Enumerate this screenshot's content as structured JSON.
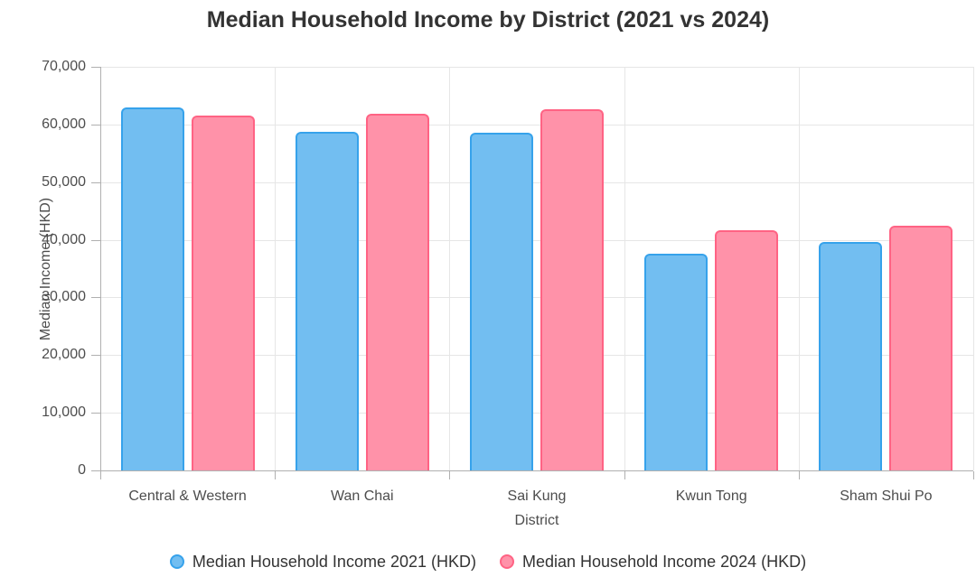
{
  "chart_data": {
    "type": "bar",
    "title": "Median Household Income by District (2021 vs 2024)",
    "xlabel": "District",
    "ylabel": "Median Income (HKD)",
    "categories": [
      "Central & Western",
      "Wan Chai",
      "Sai Kung",
      "Kwun Tong",
      "Sham Shui Po"
    ],
    "series": [
      {
        "name": "Median Household Income 2021 (HKD)",
        "values": [
          62900,
          58800,
          58600,
          37600,
          39600
        ],
        "fill_color": "#72BEF1",
        "border_color": "#36A2EB"
      },
      {
        "name": "Median Household Income 2024 (HKD)",
        "values": [
          61600,
          61800,
          62700,
          41700,
          42500
        ],
        "fill_color": "#FF92A9",
        "border_color": "#FF6384"
      }
    ],
    "ylim": [
      0,
      70000
    ],
    "y_tick_step": 10000,
    "y_tick_labels": [
      "0",
      "10,000",
      "20,000",
      "30,000",
      "40,000",
      "50,000",
      "60,000",
      "70,000"
    ],
    "grid": true,
    "legend_position": "bottom"
  },
  "style": {
    "title_color": "#333333",
    "axis_title_color": "#4d4d4d",
    "tick_text_color": "#4d4d4d",
    "legend_text_color": "#333333",
    "grid_color": "#e6e6e6",
    "axis_color": "#b0b0b0",
    "background": "#ffffff"
  }
}
